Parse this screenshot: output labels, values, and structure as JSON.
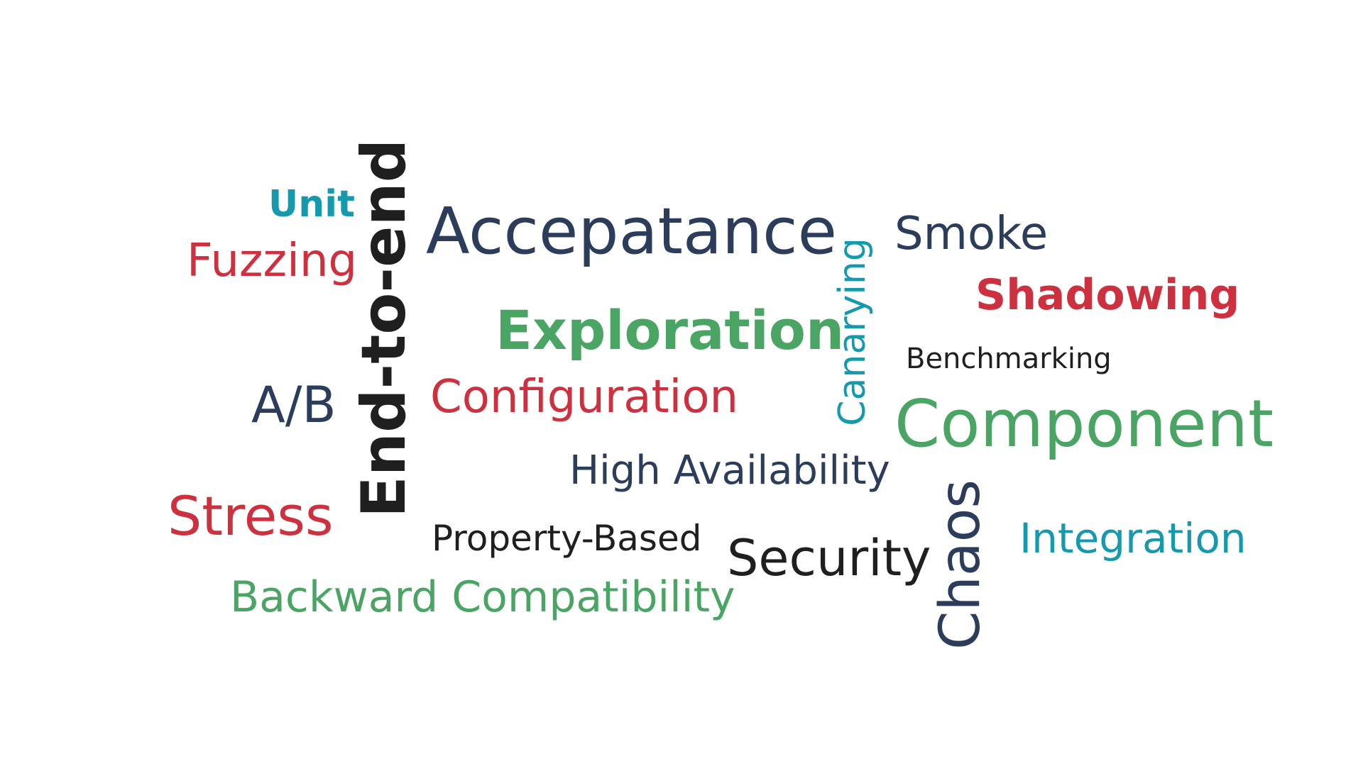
{
  "colors": {
    "navy": "#2b3d5b",
    "red": "#cd3140",
    "green": "#4aa564",
    "teal": "#1599ad",
    "black": "#1f1f1f"
  },
  "words": {
    "unit": "Unit",
    "fuzzing": "Fuzzing",
    "end_to_end": "End-to-end",
    "accepatance": "Accepatance",
    "canarying": "Canarying",
    "smoke": "Smoke",
    "shadowing": "Shadowing",
    "exploration": "Exploration",
    "benchmarking": "Benchmarking",
    "ab": "A/B",
    "configuration": "Configuration",
    "component": "Component",
    "high_availability": "High Availability",
    "stress": "Stress",
    "property_based": "Property-Based",
    "security": "Security",
    "chaos": "Chaos",
    "integration": "Integration",
    "backward_compatibility": "Backward Compatibility"
  },
  "word_colors": {
    "unit": "#1599ad",
    "fuzzing": "#cd3140",
    "end_to_end": "#1f1f1f",
    "accepatance": "#2b3d5b",
    "canarying": "#1599ad",
    "smoke": "#2b3d5b",
    "shadowing": "#cd3140",
    "exploration": "#4aa564",
    "benchmarking": "#1f1f1f",
    "ab": "#2b3d5b",
    "configuration": "#cd3140",
    "component": "#4aa564",
    "high_availability": "#2b3d5b",
    "stress": "#cd3140",
    "property_based": "#1f1f1f",
    "security": "#1f1f1f",
    "chaos": "#2b3d5b",
    "integration": "#1599ad",
    "backward_compatibility": "#4aa564"
  }
}
